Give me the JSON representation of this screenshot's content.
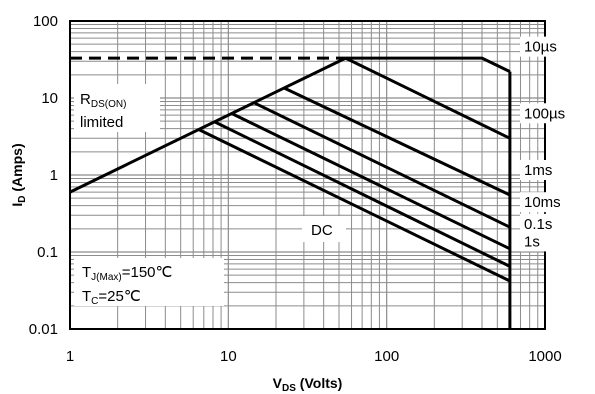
{
  "chart_data": {
    "type": "line",
    "x_scale": "log",
    "y_scale": "log",
    "xlim": [
      1,
      1000
    ],
    "ylim": [
      0.01,
      100
    ],
    "grid": true,
    "xlabel_main": "V",
    "xlabel_sub": "DS",
    "xlabel_rest": " (Volts)",
    "ylabel_main": "I",
    "ylabel_sub": "D",
    "ylabel_rest": " (Amps)",
    "x_ticks": [
      1,
      10,
      100,
      1000
    ],
    "x_tick_labels": [
      "1",
      "10",
      "100",
      "1000"
    ],
    "y_ticks": [
      0.01,
      0.1,
      1,
      10,
      100
    ],
    "y_tick_labels": [
      "0.01",
      "0.1",
      "1",
      "10",
      "100"
    ],
    "current_limit": {
      "value": 33,
      "x_from": 1,
      "x_to": 55,
      "style": "dashed"
    },
    "rds_limit_line": {
      "x": [
        1,
        55
      ],
      "y": [
        0.6,
        33
      ]
    },
    "series": [
      {
        "name": "10µs",
        "x": [
          55,
          400,
          600
        ],
        "y": [
          33,
          33,
          22
        ]
      },
      {
        "name": "100µs",
        "x": [
          55,
          600
        ],
        "y": [
          33,
          3.0
        ]
      },
      {
        "name": "1ms",
        "x": [
          22.5,
          600
        ],
        "y": [
          13.5,
          0.55
        ]
      },
      {
        "name": "10ms",
        "x": [
          14.5,
          600
        ],
        "y": [
          8.7,
          0.21
        ]
      },
      {
        "name": "0.1s",
        "x": [
          10.5,
          600
        ],
        "y": [
          6.3,
          0.11
        ]
      },
      {
        "name": "1s",
        "x": [
          8.2,
          600
        ],
        "y": [
          4.9,
          0.065
        ]
      },
      {
        "name": "DC",
        "x": [
          6.5,
          600
        ],
        "y": [
          3.9,
          0.042
        ]
      }
    ],
    "breakdown_line": {
      "x": 600,
      "y_from": 0.01,
      "y_to": 22
    },
    "annotations": {
      "rds_main": "R",
      "rds_sub": "DS(ON)",
      "rds_line2": "limited",
      "dc_label": "DC",
      "tj_main": "T",
      "tj_sub": "J(Max)",
      "tj_rest": "=150℃",
      "tc_main": "T",
      "tc_sub": "C",
      "tc_rest": "=25℃"
    },
    "line_color": "#000000",
    "grid_color": "#8c8c8c"
  }
}
